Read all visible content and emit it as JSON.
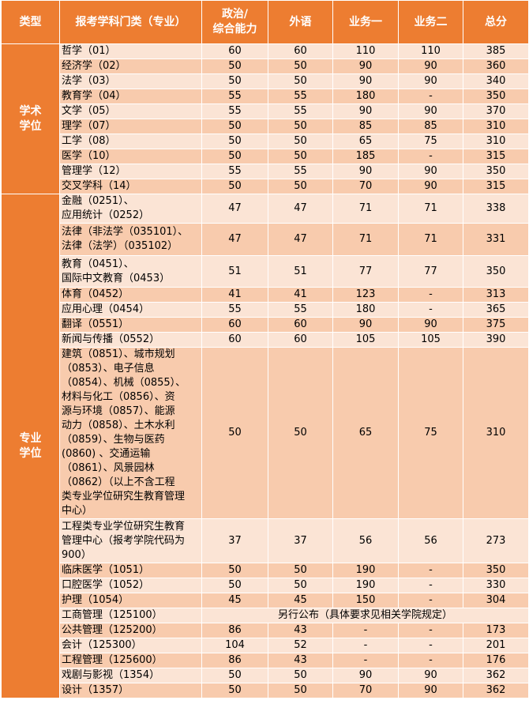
{
  "header": [
    "类型",
    "报考学科门类（专业）",
    "政治/\n综合能力",
    "外语",
    "业务一",
    "业务二",
    "总分"
  ],
  "groups": [
    {
      "category": "学术\n学位",
      "rows": [
        {
          "name": "哲学（01）",
          "c1": "60",
          "c2": "60",
          "c3": "110",
          "c4": "110",
          "total": "385"
        },
        {
          "name": "经济学（02）",
          "c1": "50",
          "c2": "50",
          "c3": "90",
          "c4": "90",
          "total": "360"
        },
        {
          "name": "法学（03）",
          "c1": "50",
          "c2": "50",
          "c3": "90",
          "c4": "90",
          "total": "340"
        },
        {
          "name": "教育学（04）",
          "c1": "55",
          "c2": "55",
          "c3": "180",
          "c4": "-",
          "total": "350"
        },
        {
          "name": "文学（05）",
          "c1": "55",
          "c2": "55",
          "c3": "90",
          "c4": "90",
          "total": "370"
        },
        {
          "name": "理学（07）",
          "c1": "50",
          "c2": "50",
          "c3": "85",
          "c4": "85",
          "total": "310"
        },
        {
          "name": "工学（08）",
          "c1": "50",
          "c2": "50",
          "c3": "65",
          "c4": "75",
          "total": "310"
        },
        {
          "name": "医学（10）",
          "c1": "50",
          "c2": "50",
          "c3": "185",
          "c4": "-",
          "total": "315"
        },
        {
          "name": "管理学（12）",
          "c1": "55",
          "c2": "55",
          "c3": "90",
          "c4": "90",
          "total": "350"
        },
        {
          "name": "交叉学科（14）",
          "c1": "50",
          "c2": "50",
          "c3": "70",
          "c4": "90",
          "total": "315"
        }
      ]
    },
    {
      "category": "专业\n学位",
      "rows": [
        {
          "name": "金融（0251）、\n应用统计（0252）",
          "c1": "47",
          "c2": "47",
          "c3": "71",
          "c4": "71",
          "total": "338"
        },
        {
          "name": "法律（非法学（035101）、\n法律（法学）（035102）",
          "c1": "47",
          "c2": "47",
          "c3": "71",
          "c4": "71",
          "total": "331"
        },
        {
          "name": "教育（0451）、\n国际中文教育（0453）",
          "c1": "51",
          "c2": "51",
          "c3": "77",
          "c4": "77",
          "total": "350"
        },
        {
          "name": "体育（0452）",
          "c1": "41",
          "c2": "41",
          "c3": "123",
          "c4": "-",
          "total": "313"
        },
        {
          "name": "应用心理（0454）",
          "c1": "55",
          "c2": "55",
          "c3": "180",
          "c4": "-",
          "total": "365"
        },
        {
          "name": "翻译（0551）",
          "c1": "60",
          "c2": "60",
          "c3": "90",
          "c4": "90",
          "total": "375"
        },
        {
          "name": "新闻与传播（0552）",
          "c1": "60",
          "c2": "60",
          "c3": "105",
          "c4": "105",
          "total": "390"
        },
        {
          "name": "建筑（0851）、城市规划\n（0853）、电子信息\n（0854）、机械（0855）、\n材料与化工（0856）、资\n源与环境（0857）、能源\n动力（0858）、土木水利\n（0859）、生物与医药\n(0860) 、交通运输\n（0861）、风景园林\n（0862）（以上不含工程\n类专业学位研究生教育管理\n中心）",
          "c1": "50",
          "c2": "50",
          "c3": "65",
          "c4": "75",
          "total": "310"
        },
        {
          "name": "工程类专业学位研究生教育\n管理中心（报考学院代码为\n900）",
          "c1": "37",
          "c2": "37",
          "c3": "56",
          "c4": "56",
          "total": "273"
        },
        {
          "name": "临床医学（1051）",
          "c1": "50",
          "c2": "50",
          "c3": "190",
          "c4": "-",
          "total": "350"
        },
        {
          "name": "口腔医学（1052）",
          "c1": "50",
          "c2": "50",
          "c3": "190",
          "c4": "-",
          "total": "330"
        },
        {
          "name": "护理（1054）",
          "c1": "45",
          "c2": "45",
          "c3": "150",
          "c4": "-",
          "total": "304"
        },
        {
          "name": "工商管理（125100）",
          "merged": "另行公布（具体要求见相关学院规定）"
        },
        {
          "name": "公共管理（125200）",
          "c1": "86",
          "c2": "43",
          "c3": "-",
          "c4": "-",
          "total": "173"
        },
        {
          "name": "会计（125300）",
          "c1": "104",
          "c2": "52",
          "c3": "-",
          "c4": "-",
          "total": "201"
        },
        {
          "name": "工程管理（125600）",
          "c1": "86",
          "c2": "43",
          "c3": "-",
          "c4": "-",
          "total": "176"
        },
        {
          "name": "戏剧与影视（1354）",
          "c1": "50",
          "c2": "50",
          "c3": "90",
          "c4": "90",
          "total": "362"
        },
        {
          "name": "设计（1357）",
          "c1": "50",
          "c2": "50",
          "c3": "70",
          "c4": "90",
          "total": "362"
        }
      ]
    }
  ]
}
